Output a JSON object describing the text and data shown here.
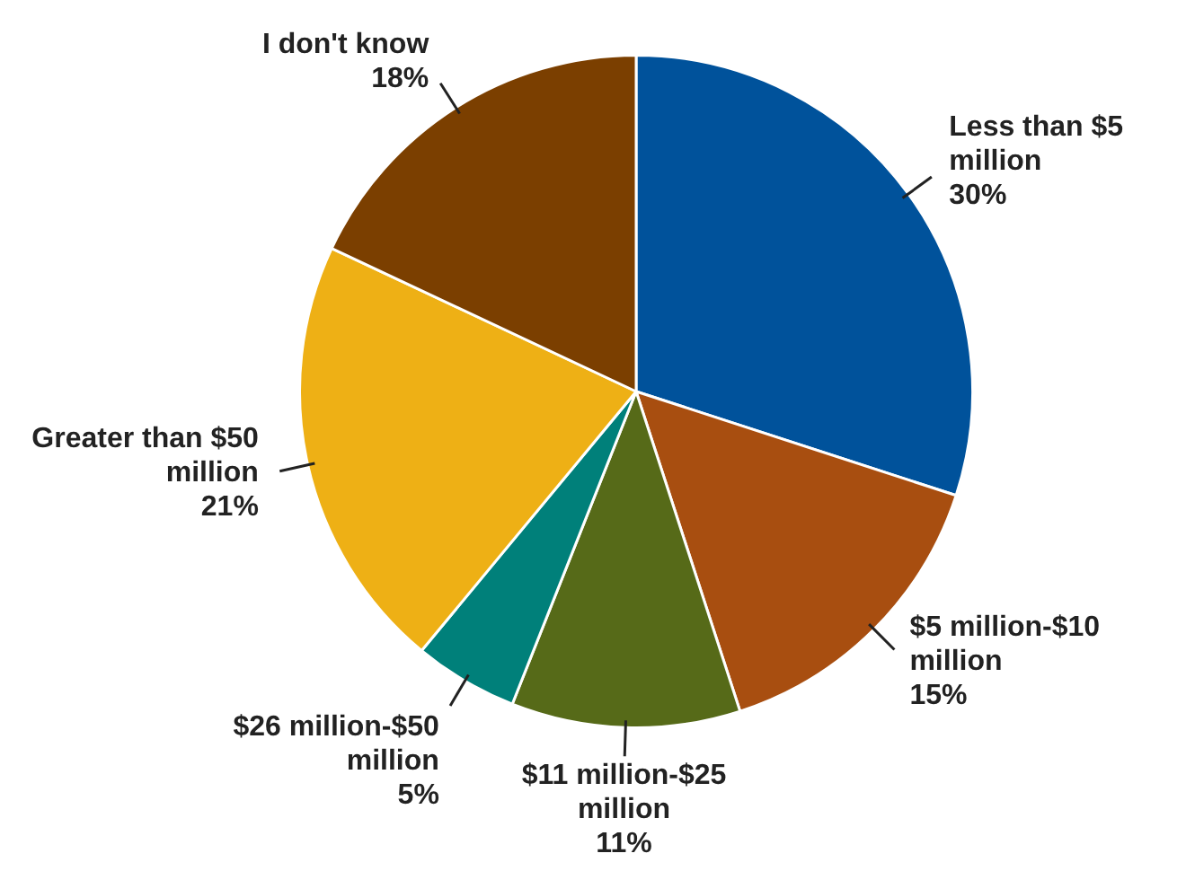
{
  "chart_data": {
    "type": "pie",
    "categories": [
      "Less than $5 million",
      "$5 million-$10 million",
      "$11 million-$25 million",
      "$26 million-$50 million",
      "Greater than $50 million",
      "I don't know"
    ],
    "values": [
      30,
      15,
      11,
      5,
      21,
      18
    ],
    "value_labels": [
      "30%",
      "15%",
      "11%",
      "5%",
      "21%",
      "18%"
    ],
    "colors": [
      "#00529b",
      "#a84e10",
      "#566a18",
      "#00807a",
      "#eeb015",
      "#7b3f00"
    ],
    "legend": false
  }
}
